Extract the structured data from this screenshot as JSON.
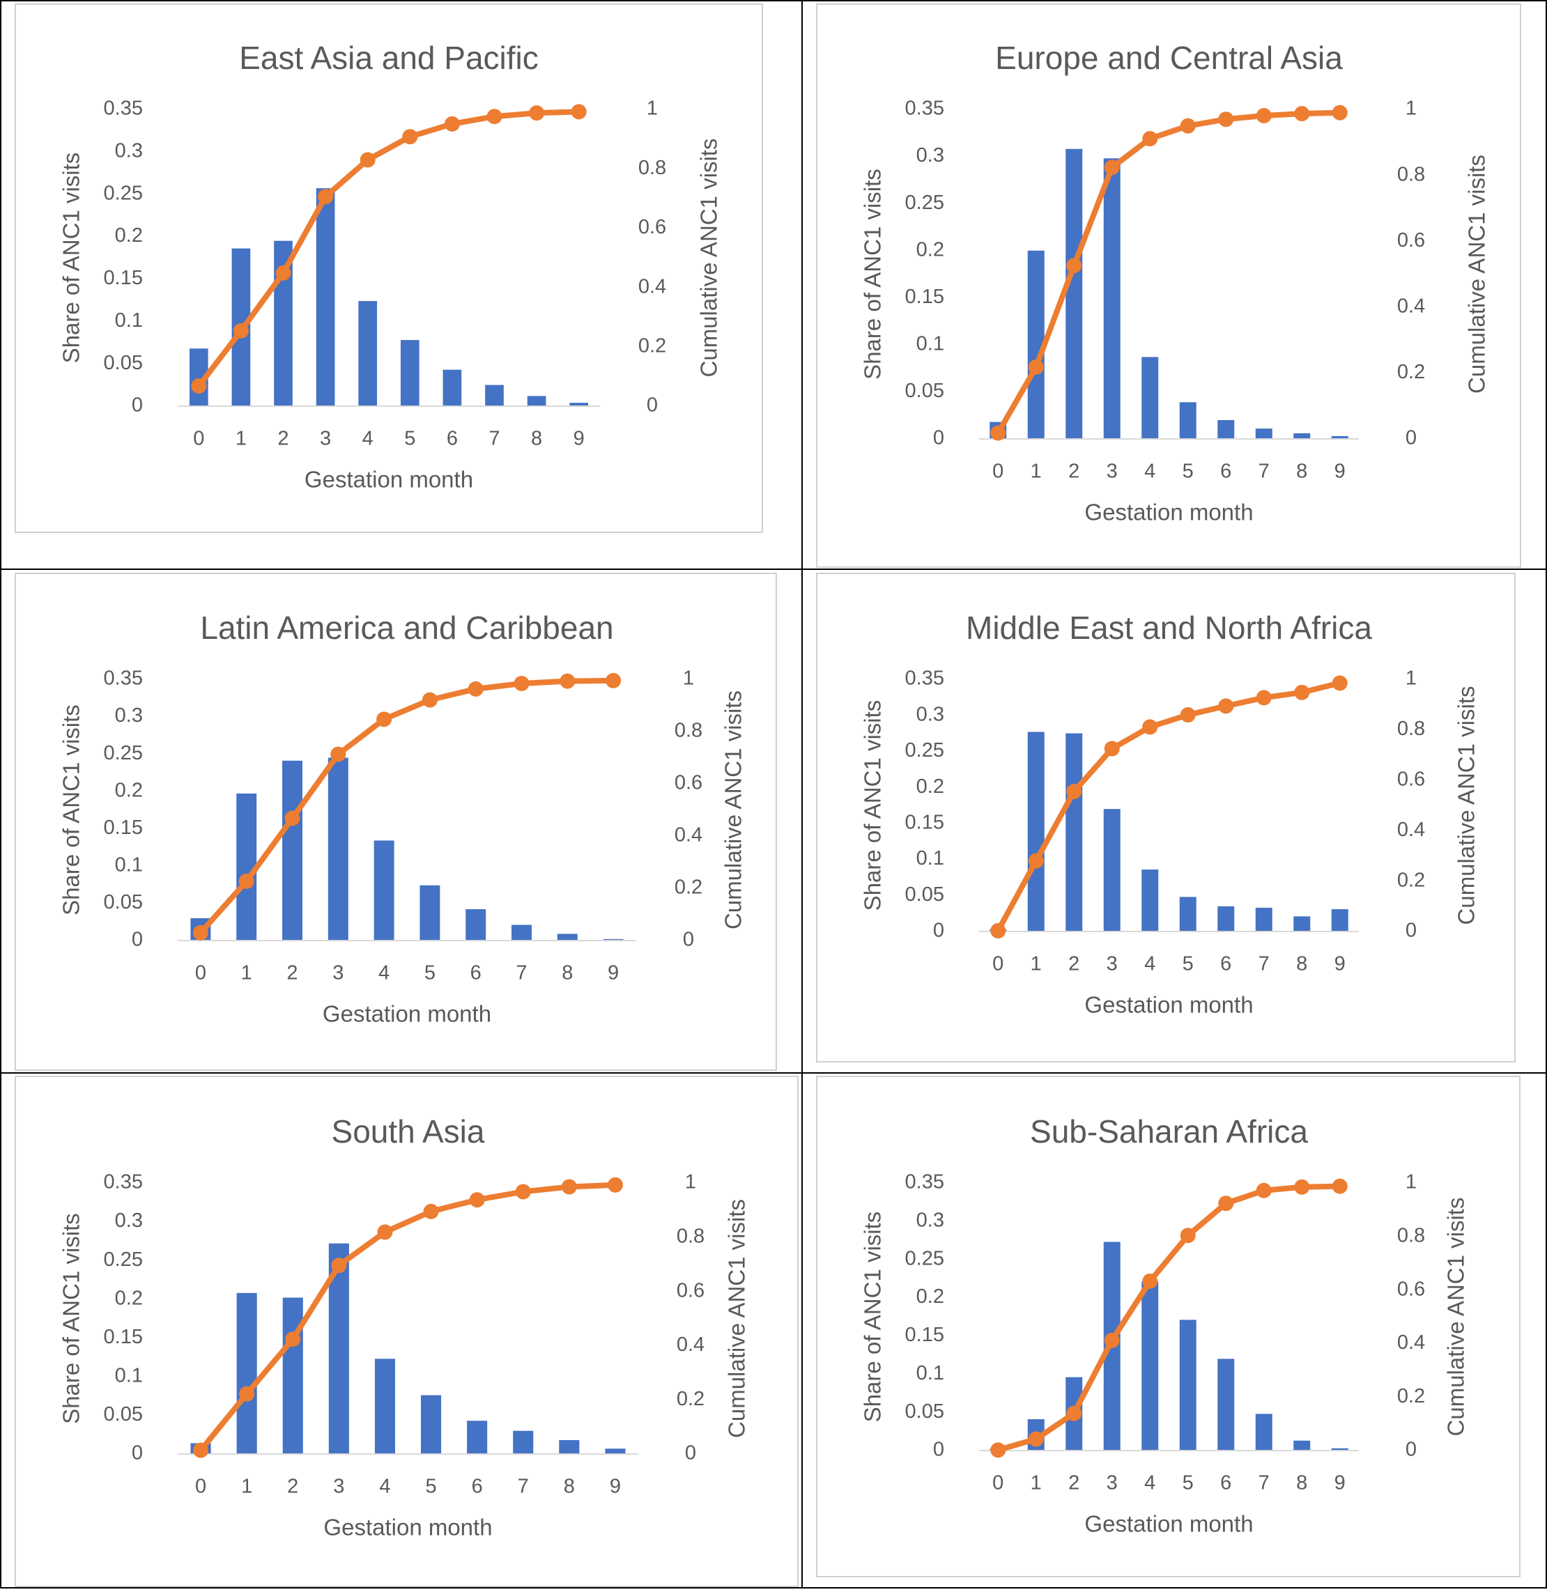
{
  "colors": {
    "bar": "#4472C4",
    "line": "#ED7D31",
    "text": "#595959",
    "axis": "#D9D9D9",
    "panel_border": "#D0D0D0",
    "grid_line": "#000000"
  },
  "chart_data": [
    {
      "type": "bar+line",
      "title": "East Asia and Pacific",
      "xlabel": "Gestation month",
      "ylabel": "Share of ANC1 visits",
      "y2label": "Cumulative ANC1 visits",
      "categories": [
        "0",
        "1",
        "2",
        "3",
        "4",
        "5",
        "6",
        "7",
        "8",
        "9"
      ],
      "y_ticks": [
        "0",
        "0.05",
        "0.1",
        "0.15",
        "0.2",
        "0.25",
        "0.3",
        "0.35"
      ],
      "y2_ticks": [
        "0",
        "0.2",
        "0.4",
        "0.6",
        "0.8",
        "1"
      ],
      "ylim": [
        0,
        0.35
      ],
      "y2lim": [
        0,
        1
      ],
      "series": [
        {
          "kind": "bar",
          "values": [
            0.068,
            0.186,
            0.195,
            0.257,
            0.124,
            0.078,
            0.043,
            0.025,
            0.012,
            0.004
          ]
        },
        {
          "kind": "line",
          "values": [
            0.068,
            0.254,
            0.449,
            0.706,
            0.83,
            0.908,
            0.951,
            0.976,
            0.988,
            0.992
          ]
        }
      ]
    },
    {
      "type": "bar+line",
      "title": "Europe and Central Asia",
      "xlabel": "Gestation month",
      "ylabel": "Share of ANC1 visits",
      "y2label": "Cumulative ANC1 visits",
      "categories": [
        "0",
        "1",
        "2",
        "3",
        "4",
        "5",
        "6",
        "7",
        "8",
        "9"
      ],
      "y_ticks": [
        "0",
        "0.05",
        "0.1",
        "0.15",
        "0.2",
        "0.25",
        "0.3",
        "0.35"
      ],
      "y2_ticks": [
        "0",
        "0.2",
        "0.4",
        "0.6",
        "0.8",
        "1"
      ],
      "ylim": [
        0,
        0.35
      ],
      "y2lim": [
        0,
        1
      ],
      "series": [
        {
          "kind": "bar",
          "values": [
            0.018,
            0.2,
            0.308,
            0.298,
            0.087,
            0.039,
            0.02,
            0.011,
            0.006,
            0.003
          ]
        },
        {
          "kind": "line",
          "values": [
            0.018,
            0.218,
            0.526,
            0.824,
            0.911,
            0.95,
            0.97,
            0.981,
            0.987,
            0.99
          ]
        }
      ]
    },
    {
      "type": "bar+line",
      "title": "Latin America and Caribbean",
      "xlabel": "Gestation month",
      "ylabel": "Share of ANC1 visits",
      "y2label": "Cumulative ANC1 visits",
      "categories": [
        "0",
        "1",
        "2",
        "3",
        "4",
        "5",
        "6",
        "7",
        "8",
        "9"
      ],
      "y_ticks": [
        "0",
        "0.05",
        "0.1",
        "0.15",
        "0.2",
        "0.25",
        "0.3",
        "0.35"
      ],
      "y2_ticks": [
        "0",
        "0.2",
        "0.4",
        "0.6",
        "0.8",
        "1"
      ],
      "ylim": [
        0,
        0.35
      ],
      "y2lim": [
        0,
        1
      ],
      "series": [
        {
          "kind": "bar",
          "values": [
            0.03,
            0.197,
            0.241,
            0.245,
            0.134,
            0.074,
            0.042,
            0.021,
            0.009,
            0.002
          ]
        },
        {
          "kind": "line",
          "values": [
            0.03,
            0.227,
            0.468,
            0.713,
            0.847,
            0.921,
            0.963,
            0.984,
            0.993,
            0.995
          ]
        }
      ]
    },
    {
      "type": "bar+line",
      "title": "Middle East and North Africa",
      "xlabel": "Gestation month",
      "ylabel": "Share of ANC1 visits",
      "y2label": "Cumulative ANC1 visits",
      "categories": [
        "0",
        "1",
        "2",
        "3",
        "4",
        "5",
        "6",
        "7",
        "8",
        "9"
      ],
      "y_ticks": [
        "0",
        "0.05",
        "0.1",
        "0.15",
        "0.2",
        "0.25",
        "0.3",
        "0.35"
      ],
      "y2_ticks": [
        "0",
        "0.2",
        "0.4",
        "0.6",
        "0.8",
        "1"
      ],
      "ylim": [
        0,
        0.35
      ],
      "y2lim": [
        0,
        1
      ],
      "series": [
        {
          "kind": "bar",
          "values": [
            0.003,
            0.277,
            0.275,
            0.17,
            0.086,
            0.048,
            0.035,
            0.033,
            0.021,
            0.031
          ]
        },
        {
          "kind": "line",
          "values": [
            0.003,
            0.28,
            0.555,
            0.725,
            0.811,
            0.859,
            0.894,
            0.927,
            0.948,
            0.985
          ]
        }
      ]
    },
    {
      "type": "bar+line",
      "title": "South Asia",
      "xlabel": "Gestation month",
      "ylabel": "Share of ANC1 visits",
      "y2label": "Cumulative ANC1 visits",
      "categories": [
        "0",
        "1",
        "2",
        "3",
        "4",
        "5",
        "6",
        "7",
        "8",
        "9"
      ],
      "y_ticks": [
        "0",
        "0.05",
        "0.1",
        "0.15",
        "0.2",
        "0.25",
        "0.3",
        "0.35"
      ],
      "y2_ticks": [
        "0",
        "0.2",
        "0.4",
        "0.6",
        "0.8",
        "1"
      ],
      "ylim": [
        0,
        0.35
      ],
      "y2lim": [
        0,
        1
      ],
      "series": [
        {
          "kind": "bar",
          "values": [
            0.014,
            0.208,
            0.202,
            0.272,
            0.123,
            0.076,
            0.043,
            0.03,
            0.018,
            0.007
          ]
        },
        {
          "kind": "line",
          "values": [
            0.014,
            0.222,
            0.424,
            0.696,
            0.819,
            0.895,
            0.938,
            0.968,
            0.986,
            0.993
          ]
        }
      ]
    },
    {
      "type": "bar+line",
      "title": "Sub-Saharan Africa",
      "xlabel": "Gestation month",
      "ylabel": "Share of ANC1 visits",
      "y2label": "Cumulative ANC1 visits",
      "categories": [
        "0",
        "1",
        "2",
        "3",
        "4",
        "5",
        "6",
        "7",
        "8",
        "9"
      ],
      "y_ticks": [
        "0",
        "0.05",
        "0.1",
        "0.15",
        "0.2",
        "0.25",
        "0.3",
        "0.35"
      ],
      "y2_ticks": [
        "0",
        "0.2",
        "0.4",
        "0.6",
        "0.8",
        "1"
      ],
      "ylim": [
        0,
        0.35
      ],
      "y2lim": [
        0,
        1
      ],
      "series": [
        {
          "kind": "bar",
          "values": [
            0.002,
            0.041,
            0.096,
            0.273,
            0.221,
            0.171,
            0.12,
            0.048,
            0.013,
            0.003
          ]
        },
        {
          "kind": "line",
          "values": [
            0.002,
            0.043,
            0.139,
            0.412,
            0.633,
            0.804,
            0.924,
            0.972,
            0.985,
            0.988
          ]
        }
      ]
    }
  ]
}
